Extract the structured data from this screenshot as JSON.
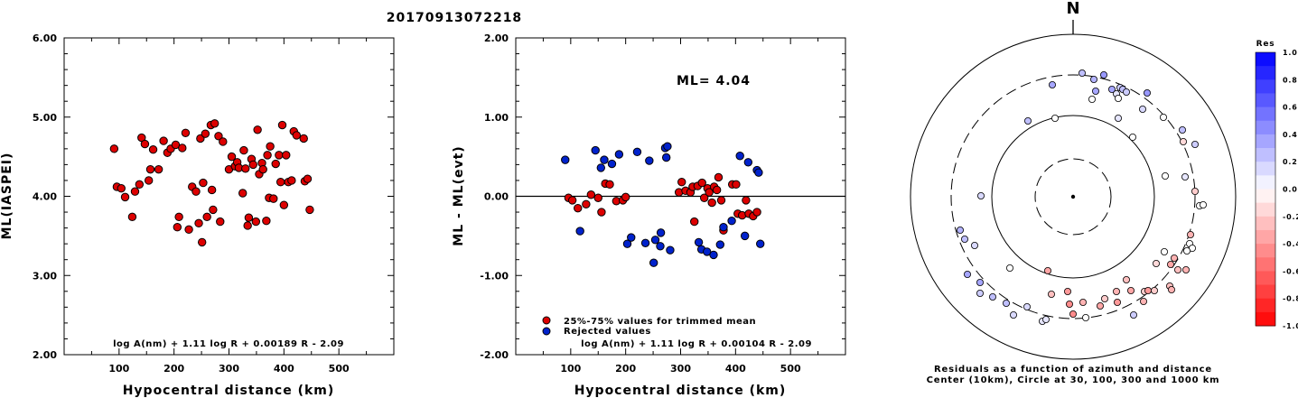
{
  "event_id": "20170913072218",
  "chart_data": [
    {
      "type": "scatter",
      "title": "",
      "xlabel": "Hypocentral distance (km)",
      "ylabel": "ML(IASPEI)",
      "xlim": [
        0,
        600
      ],
      "ylim": [
        2.0,
        6.0
      ],
      "x_ticks": [
        "100",
        "200",
        "300",
        "400",
        "500"
      ],
      "y_ticks": [
        "2.00",
        "3.00",
        "4.00",
        "5.00",
        "6.00"
      ],
      "formula": "log A(nm) + 1.11 log R + 0.00189 R - 2.09",
      "series": [
        {
          "color": "#dd0000",
          "points": [
            [
              91,
              4.6
            ],
            [
              96,
              4.12
            ],
            [
              104,
              4.1
            ],
            [
              111,
              3.99
            ],
            [
              124,
              3.74
            ],
            [
              129,
              4.06
            ],
            [
              137,
              4.15
            ],
            [
              141,
              4.74
            ],
            [
              147,
              4.66
            ],
            [
              154,
              4.2
            ],
            [
              157,
              4.34
            ],
            [
              162,
              4.59
            ],
            [
              172,
              4.34
            ],
            [
              181,
              4.7
            ],
            [
              188,
              4.55
            ],
            [
              194,
              4.6
            ],
            [
              203,
              4.65
            ],
            [
              206,
              3.61
            ],
            [
              209,
              3.74
            ],
            [
              215,
              4.61
            ],
            [
              221,
              4.8
            ],
            [
              227,
              3.58
            ],
            [
              233,
              4.12
            ],
            [
              240,
              4.06
            ],
            [
              245,
              3.66
            ],
            [
              248,
              4.73
            ],
            [
              251,
              3.42
            ],
            [
              253,
              4.17
            ],
            [
              257,
              4.79
            ],
            [
              260,
              3.74
            ],
            [
              267,
              4.9
            ],
            [
              269,
              4.08
            ],
            [
              271,
              3.83
            ],
            [
              274,
              4.92
            ],
            [
              281,
              4.76
            ],
            [
              284,
              3.68
            ],
            [
              289,
              4.69
            ],
            [
              300,
              4.34
            ],
            [
              305,
              4.5
            ],
            [
              311,
              4.38
            ],
            [
              315,
              4.43
            ],
            [
              318,
              4.36
            ],
            [
              325,
              4.04
            ],
            [
              327,
              4.58
            ],
            [
              330,
              4.35
            ],
            [
              334,
              3.63
            ],
            [
              336,
              3.73
            ],
            [
              341,
              4.47
            ],
            [
              344,
              4.4
            ],
            [
              349,
              3.68
            ],
            [
              352,
              4.84
            ],
            [
              355,
              4.28
            ],
            [
              360,
              4.42
            ],
            [
              362,
              4.34
            ],
            [
              368,
              3.69
            ],
            [
              370,
              4.52
            ],
            [
              373,
              3.98
            ],
            [
              375,
              4.63
            ],
            [
              381,
              3.97
            ],
            [
              385,
              4.41
            ],
            [
              391,
              4.52
            ],
            [
              394,
              4.18
            ],
            [
              397,
              4.9
            ],
            [
              400,
              3.89
            ],
            [
              404,
              4.52
            ],
            [
              408,
              4.18
            ],
            [
              414,
              4.2
            ],
            [
              418,
              4.82
            ],
            [
              423,
              4.77
            ],
            [
              436,
              4.73
            ],
            [
              438,
              4.19
            ],
            [
              443,
              4.22
            ],
            [
              447,
              3.83
            ]
          ]
        }
      ]
    },
    {
      "type": "scatter",
      "title": "",
      "xlabel": "Hypocentral distance (km)",
      "ylabel": "ML - ML(evt)",
      "xlim": [
        0,
        600
      ],
      "ylim": [
        -2.0,
        2.0
      ],
      "x_ticks": [
        "100",
        "200",
        "300",
        "400",
        "500"
      ],
      "y_ticks": [
        "-2.00",
        "-1.00",
        "0.00",
        "1.00",
        "2.00"
      ],
      "annotation": "ML= 4.04",
      "formula": "log A(nm) + 1.11 log R + 0.00104 R - 2.09",
      "legend": [
        "25%-75% values for trimmed mean",
        "Rejected values"
      ],
      "legend_position": "bottom-left",
      "series": [
        {
          "name": "25%-75% values for trimmed mean",
          "color": "#dd0000",
          "points": [
            [
              96,
              -0.02
            ],
            [
              103,
              -0.05
            ],
            [
              113,
              -0.15
            ],
            [
              128,
              -0.1
            ],
            [
              137,
              0.02
            ],
            [
              150,
              -0.02
            ],
            [
              156,
              -0.2
            ],
            [
              163,
              0.16
            ],
            [
              171,
              0.15
            ],
            [
              183,
              -0.06
            ],
            [
              195,
              -0.05
            ],
            [
              200,
              -0.01
            ],
            [
              297,
              0.05
            ],
            [
              302,
              0.18
            ],
            [
              309,
              0.07
            ],
            [
              318,
              0.05
            ],
            [
              322,
              0.12
            ],
            [
              325,
              -0.32
            ],
            [
              331,
              0.13
            ],
            [
              339,
              0.17
            ],
            [
              343,
              -0.02
            ],
            [
              349,
              0.1
            ],
            [
              352,
              0.05
            ],
            [
              357,
              -0.08
            ],
            [
              361,
              0.12
            ],
            [
              366,
              0.08
            ],
            [
              369,
              0.24
            ],
            [
              374,
              -0.05
            ],
            [
              378,
              -0.43
            ],
            [
              394,
              0.15
            ],
            [
              401,
              0.15
            ],
            [
              404,
              -0.22
            ],
            [
              412,
              -0.24
            ],
            [
              419,
              -0.05
            ],
            [
              424,
              -0.22
            ],
            [
              432,
              -0.25
            ],
            [
              439,
              -0.2
            ]
          ]
        },
        {
          "name": "Rejected values",
          "color": "#0022cc",
          "points": [
            [
              90,
              0.46
            ],
            [
              117,
              -0.44
            ],
            [
              145,
              0.58
            ],
            [
              155,
              0.36
            ],
            [
              161,
              0.46
            ],
            [
              175,
              0.41
            ],
            [
              188,
              0.53
            ],
            [
              203,
              -0.6
            ],
            [
              210,
              -0.52
            ],
            [
              221,
              0.56
            ],
            [
              236,
              -0.59
            ],
            [
              243,
              0.45
            ],
            [
              251,
              -0.84
            ],
            [
              254,
              -0.55
            ],
            [
              263,
              -0.63
            ],
            [
              264,
              -0.46
            ],
            [
              272,
              0.61
            ],
            [
              274,
              0.49
            ],
            [
              276,
              0.63
            ],
            [
              281,
              -0.68
            ],
            [
              333,
              -0.58
            ],
            [
              338,
              -0.67
            ],
            [
              348,
              -0.7
            ],
            [
              360,
              -0.74
            ],
            [
              372,
              -0.61
            ],
            [
              378,
              -0.39
            ],
            [
              393,
              -0.31
            ],
            [
              408,
              0.51
            ],
            [
              417,
              -0.5
            ],
            [
              423,
              0.43
            ],
            [
              439,
              0.33
            ],
            [
              442,
              0.3
            ],
            [
              445,
              -0.6
            ]
          ]
        }
      ]
    },
    {
      "type": "scatter",
      "title": "",
      "north_label": "N",
      "caption_lines": [
        "Residuals as a function of azimuth and distance",
        "Center (10km), Circle at 30, 100, 300 and 1000 km"
      ],
      "colorbar_title": "Res",
      "colorbar_ticks": [
        "1.0",
        "0.8",
        "0.6",
        "0.4",
        "0.2",
        "0.0",
        "-0.2",
        "-0.4",
        "-0.6",
        "-0.8",
        "-1.0"
      ],
      "colorbar_range": [
        -1.0,
        1.0
      ],
      "colorbar_colors": {
        "positive": "#0000ff",
        "zero": "#ffffff",
        "negative": "#ff0000"
      },
      "stations": [
        [
          1165,
          94,
          0.35
        ],
        [
          1198,
          81,
          0.25
        ],
        [
          1211,
          88,
          0.3
        ],
        [
          1213,
          101,
          0.35
        ],
        [
          1222,
          83,
          0.4
        ],
        [
          1231,
          99,
          0.35
        ],
        [
          1236,
          104,
          0.1
        ],
        [
          1240,
          97,
          0.2
        ],
        [
          1243,
          99,
          0.25
        ],
        [
          1238,
          109,
          0
        ],
        [
          1247,
          102,
          0.2
        ],
        [
          1270,
          103,
          0.4
        ],
        [
          1209,
          110,
          0
        ],
        [
          1238,
          131,
          0.1
        ],
        [
          1265,
          121,
          0.15
        ],
        [
          1254,
          152,
          0
        ],
        [
          1288,
          130,
          0
        ],
        [
          1309,
          144,
          0.25
        ],
        [
          1323,
          160,
          0.2
        ],
        [
          1310,
          157,
          -0.15
        ],
        [
          1168,
          131,
          0
        ],
        [
          1138,
          134,
          0.25
        ],
        [
          1290,
          195,
          0
        ],
        [
          1312,
          196,
          0.1
        ],
        [
          1323,
          212,
          -0.2
        ],
        [
          1328,
          228,
          0
        ],
        [
          1332,
          227,
          0
        ],
        [
          1086,
          217,
          0.15
        ],
        [
          1063,
          255,
          0.3
        ],
        [
          1068,
          265,
          0.25
        ],
        [
          1079,
          272,
          0.15
        ],
        [
          1318,
          260,
          -0.3
        ],
        [
          1317,
          270,
          0
        ],
        [
          1320,
          275,
          0
        ],
        [
          1314,
          278,
          0
        ],
        [
          1289,
          279,
          0
        ],
        [
          1280,
          292,
          -0.15
        ],
        [
          1296,
          293,
          -0.35
        ],
        [
          1300,
          286,
          -0.3
        ],
        [
          1304,
          299,
          -0.25
        ],
        [
          1313,
          299,
          -0.3
        ],
        [
          1118,
          297,
          0
        ],
        [
          1160,
          300,
          -0.35
        ],
        [
          1071,
          304,
          0.35
        ],
        [
          1085,
          313,
          0.35
        ],
        [
          1085,
          325,
          0.2
        ],
        [
          1099,
          329,
          0.25
        ],
        [
          1114,
          336,
          0.25
        ],
        [
          1122,
          349,
          0.15
        ],
        [
          1137,
          340,
          0.15
        ],
        [
          1154,
          356,
          0.1
        ],
        [
          1158,
          354,
          0.1
        ],
        [
          1164,
          326,
          -0.25
        ],
        [
          1182,
          323,
          -0.4
        ],
        [
          1184,
          337,
          -0.45
        ],
        [
          1188,
          348,
          -0.45
        ],
        [
          1202,
          352,
          0
        ],
        [
          1199,
          335,
          -0.3
        ],
        [
          1218,
          339,
          -0.35
        ],
        [
          1223,
          331,
          -0.2
        ],
        [
          1236,
          323,
          -0.3
        ],
        [
          1237,
          335,
          -0.4
        ],
        [
          1247,
          310,
          -0.25
        ],
        [
          1252,
          322,
          -0.35
        ],
        [
          1255,
          349,
          0.2
        ],
        [
          1266,
          334,
          -0.3
        ],
        [
          1267,
          323,
          -0.2
        ],
        [
          1271,
          322,
          -0.4
        ],
        [
          1278,
          322,
          -0.2
        ],
        [
          1295,
          317,
          -0.25
        ],
        [
          1297,
          321,
          -0.3
        ]
      ]
    }
  ]
}
